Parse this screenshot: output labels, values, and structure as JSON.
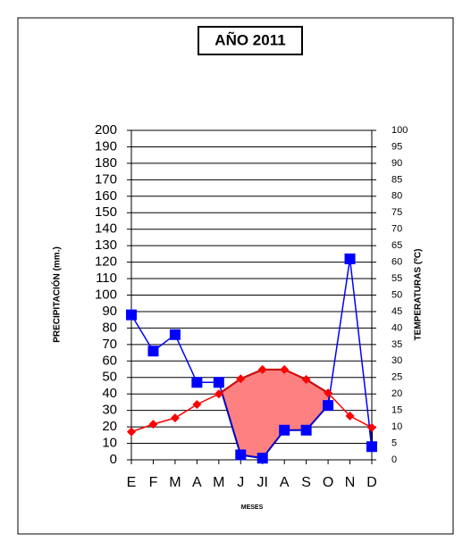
{
  "chart_data": {
    "type": "line",
    "title": "AÑO 2011",
    "x_label": "MESES",
    "y_label": "PRECIPITACIÓN (mm.)",
    "y2_label": "TEMPERATURAS (ºC)",
    "categories": [
      "E",
      "F",
      "M",
      "A",
      "M",
      "J",
      "JI",
      "A",
      "S",
      "O",
      "N",
      "D"
    ],
    "series": [
      {
        "name": "Precipitación",
        "color": "#0000ff",
        "values": [
          88,
          66,
          76,
          47,
          47,
          3,
          1,
          18,
          18,
          33,
          122,
          8
        ]
      },
      {
        "name": "Temperatura",
        "color": "#ff0000",
        "axis": "y2",
        "values": [
          8.5,
          10.8,
          12.7,
          16.8,
          20,
          24.6,
          27.4,
          27.4,
          24.4,
          20.3,
          13.3,
          9.8
        ]
      }
    ],
    "ylim": [
      0,
      200
    ],
    "yticks": [
      0,
      10,
      20,
      30,
      40,
      50,
      60,
      70,
      80,
      90,
      100,
      110,
      120,
      130,
      140,
      150,
      160,
      170,
      180,
      190,
      200
    ],
    "y2lim": [
      0,
      100
    ],
    "y2ticks": [
      0,
      5,
      10,
      15,
      20,
      25,
      30,
      35,
      40,
      45,
      50,
      55,
      60,
      65,
      70,
      75,
      80,
      85,
      90,
      95,
      100
    ],
    "grid": true,
    "arid_fill": "#ff8080"
  }
}
